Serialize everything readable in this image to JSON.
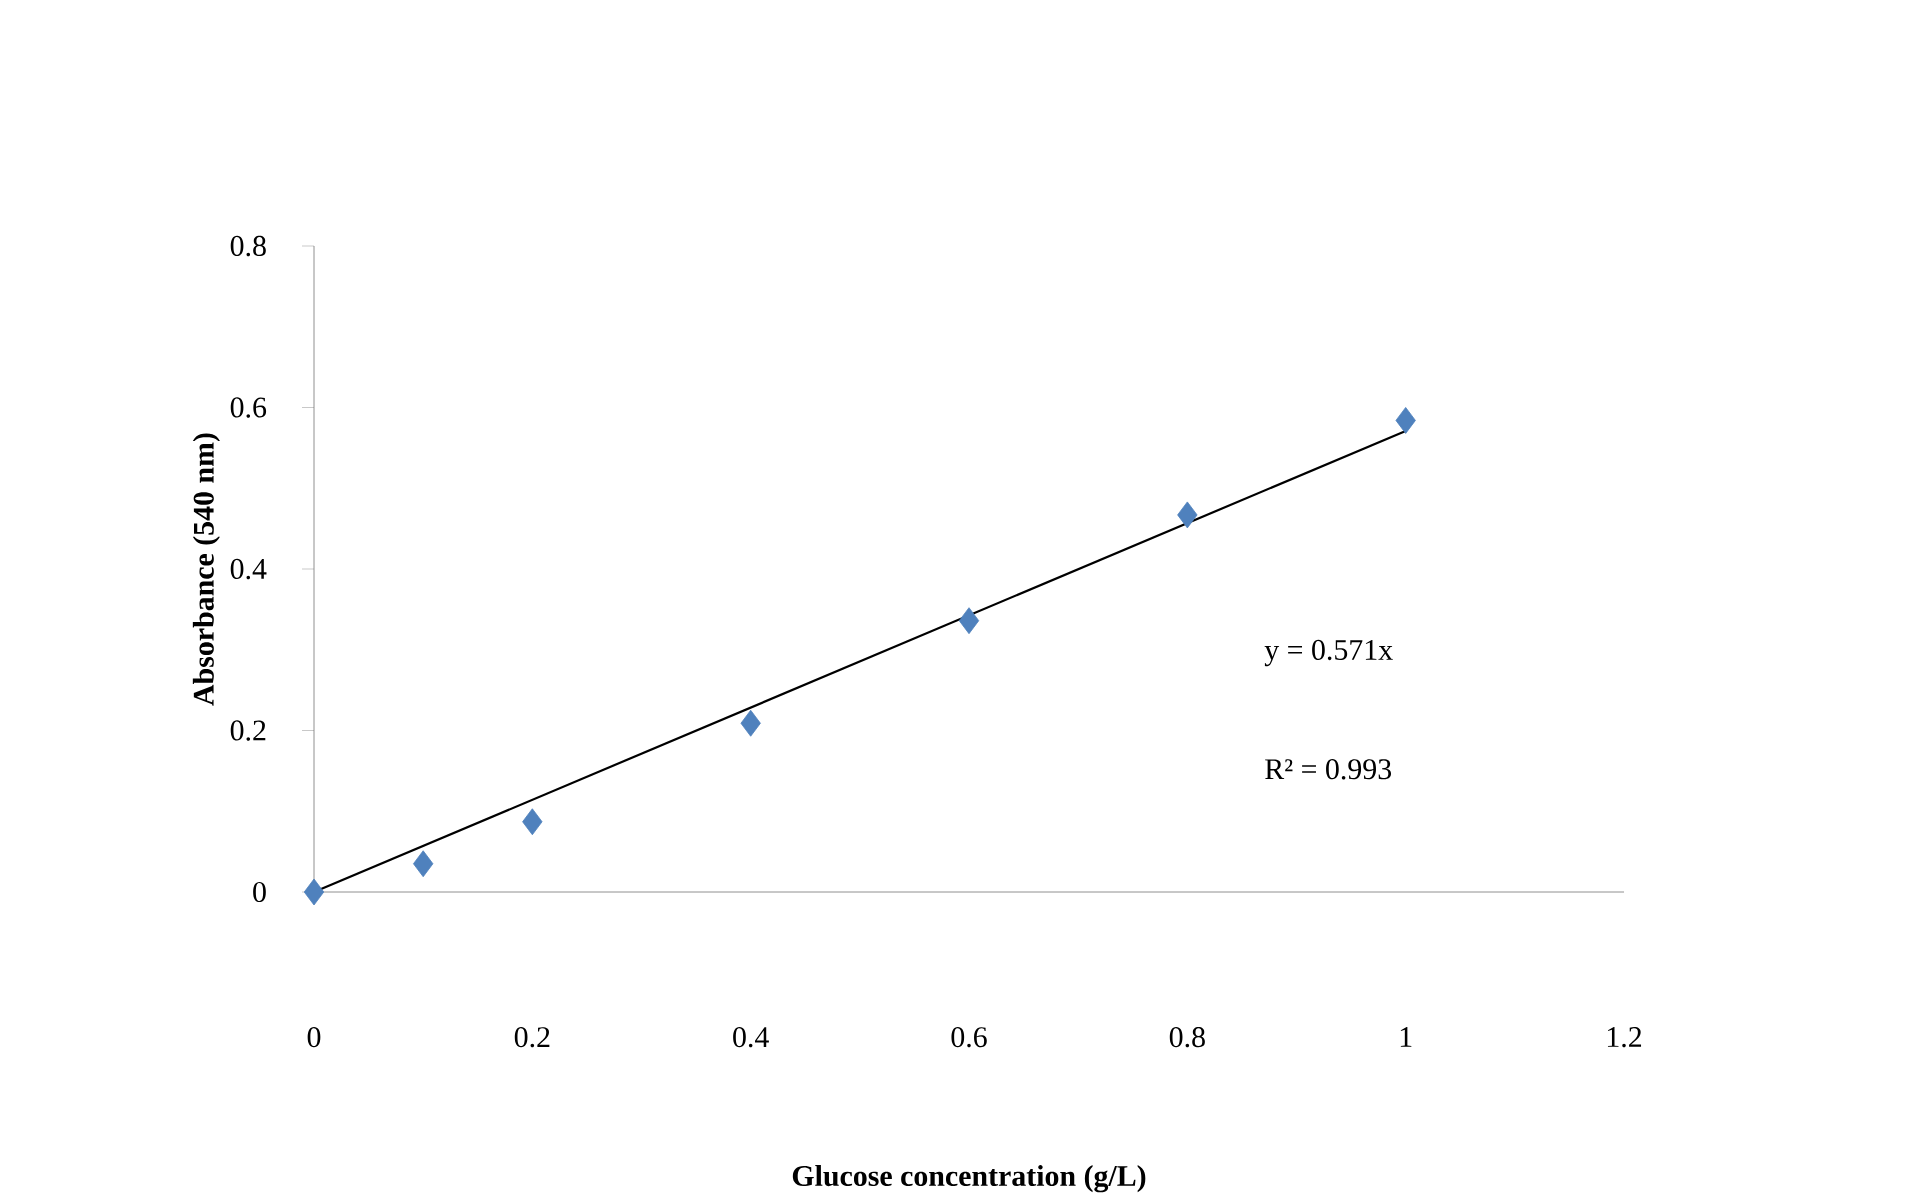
{
  "chart_data": {
    "type": "scatter",
    "xlabel": "Glucose concentration (g/L)",
    "ylabel": "Absorbance (540 nm)",
    "series": [
      {
        "color": "#4f81bd",
        "marker": "diamond",
        "x": [
          0,
          0.1,
          0.2,
          0.4,
          0.6,
          0.8,
          1
        ],
        "values": [
          0,
          0.035,
          0.087,
          0.209,
          0.336,
          0.467,
          0.584
        ]
      },
      {
        "type": "line",
        "color": "#000000",
        "marker": "none",
        "line_style": "solid",
        "x": [
          0,
          1
        ],
        "values": [
          0,
          0.571
        ]
      }
    ],
    "annotations": [
      "y = 0.571x",
      "R² = 0.993"
    ],
    "xlim": [
      0,
      1.2
    ],
    "ylim": [
      0,
      0.8
    ],
    "xticks": [
      0,
      0.2,
      0.4,
      0.6,
      0.8,
      1,
      1.2
    ],
    "yticks": [
      0,
      0.2,
      0.4,
      0.6,
      0.8
    ],
    "grid": false
  }
}
